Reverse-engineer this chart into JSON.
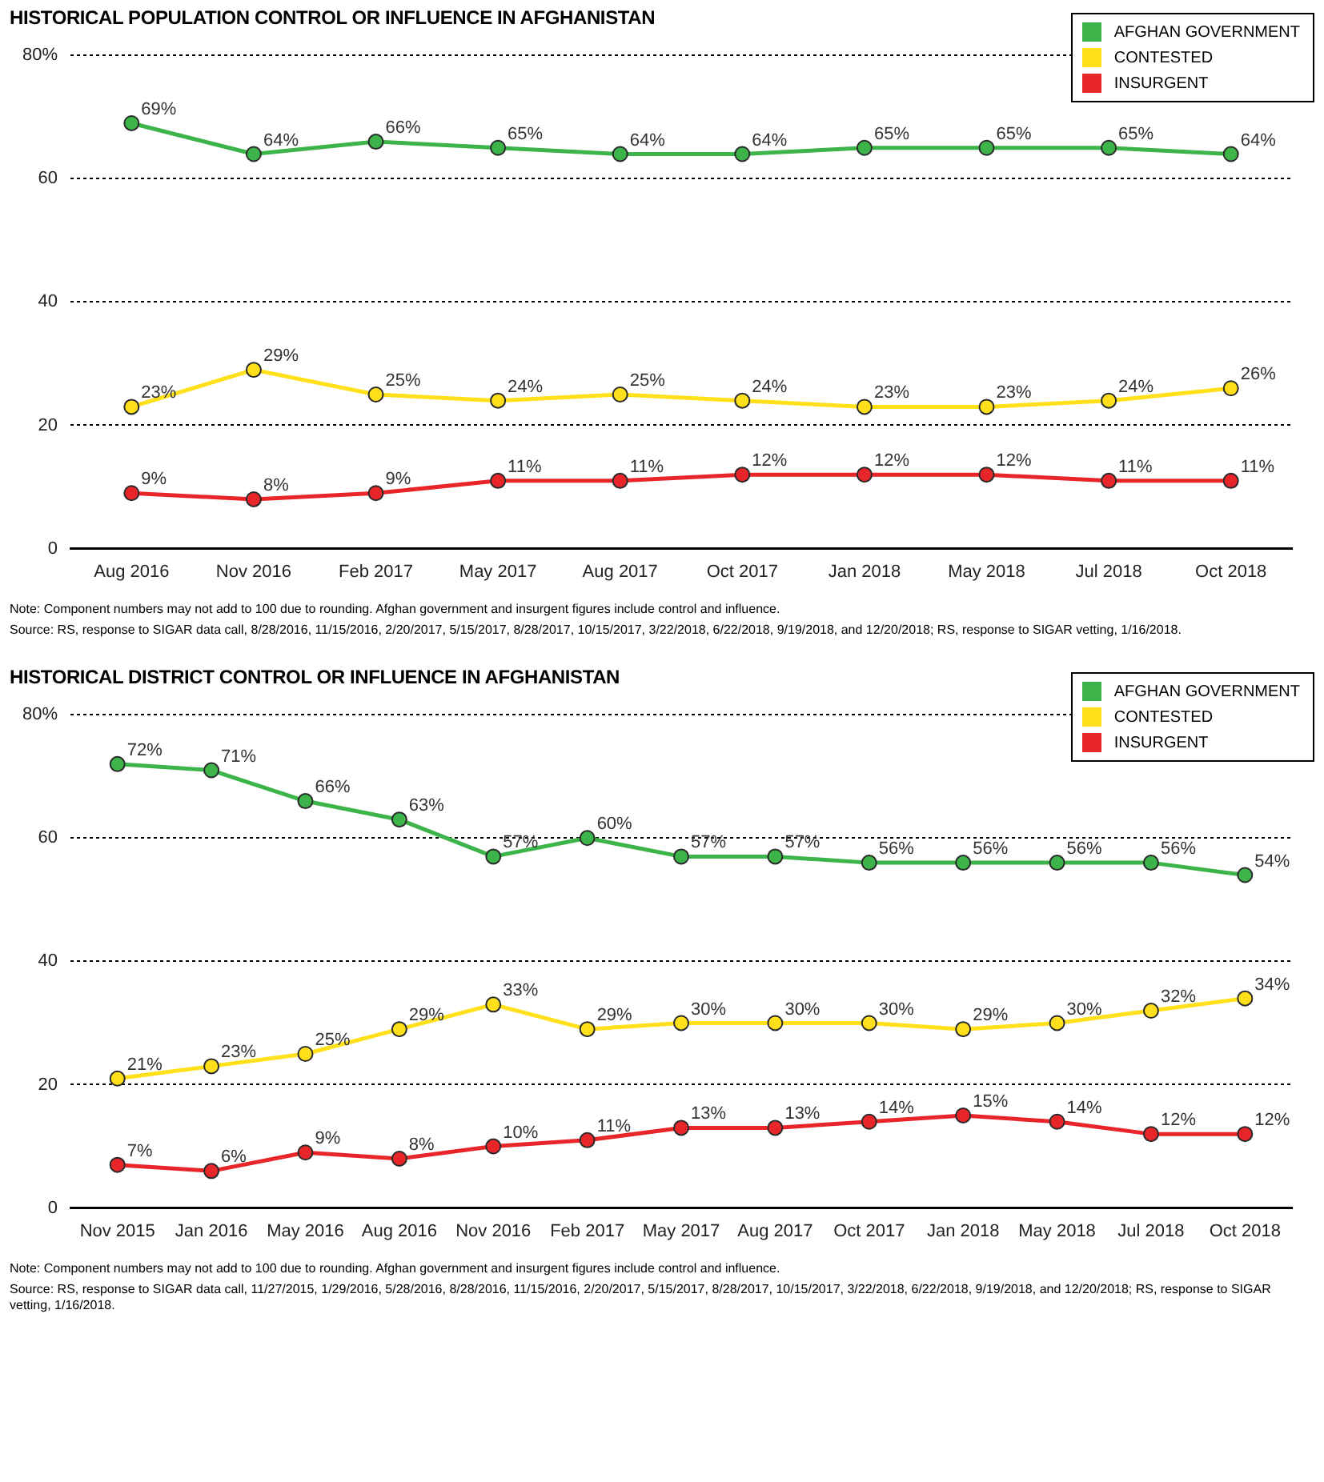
{
  "chart_data": [
    {
      "type": "line",
      "title": "HISTORICAL POPULATION CONTROL OR INFLUENCE IN AFGHANISTAN",
      "categories": [
        "Aug 2016",
        "Nov 2016",
        "Feb 2017",
        "May 2017",
        "Aug 2017",
        "Oct 2017",
        "Jan 2018",
        "May 2018",
        "Jul 2018",
        "Oct 2018"
      ],
      "series": [
        {
          "name": "AFGHAN GOVERNMENT",
          "color": "#3cb44a",
          "values": [
            69,
            64,
            66,
            65,
            64,
            64,
            65,
            65,
            65,
            64
          ],
          "value_labels": [
            "69%",
            "64%",
            "66%",
            "65%",
            "64%",
            "64%",
            "65%",
            "65%",
            "65%",
            "64%"
          ]
        },
        {
          "name": "CONTESTED",
          "color": "#ffe01a",
          "values": [
            23,
            29,
            25,
            24,
            25,
            24,
            23,
            23,
            24,
            26
          ],
          "value_labels": [
            "23%",
            "29%",
            "25%",
            "24%",
            "25%",
            "24%",
            "23%",
            "23%",
            "24%",
            "26%"
          ]
        },
        {
          "name": "INSURGENT",
          "color": "#e8262a",
          "values": [
            9,
            8,
            9,
            11,
            11,
            12,
            12,
            12,
            11,
            11
          ],
          "value_labels": [
            "9%",
            "8%",
            "9%",
            "11%",
            "11%",
            "12%",
            "12%",
            "12%",
            "11%",
            "11%"
          ]
        }
      ],
      "ylim": [
        0,
        80
      ],
      "yticks": [
        0,
        20,
        40,
        60,
        {
          "value": 80,
          "label": "80%"
        }
      ],
      "grid": "y",
      "legend": "top right",
      "marker": "circle",
      "annotations": [
        "Note: Component numbers may not add to 100 due to rounding. Afghan government and insurgent figures include control and influence.",
        "Source: RS, response to SIGAR data call, 8/28/2016, 11/15/2016, 2/20/2017, 5/15/2017, 8/28/2017, 10/15/2017, 3/22/2018, 6/22/2018, 9/19/2018, and 12/20/2018; RS, response to SIGAR vetting, 1/16/2018."
      ]
    },
    {
      "type": "line",
      "title": "HISTORICAL DISTRICT CONTROL OR INFLUENCE IN AFGHANISTAN",
      "categories": [
        "Nov 2015",
        "Jan 2016",
        "May 2016",
        "Aug 2016",
        "Nov 2016",
        "Feb 2017",
        "May 2017",
        "Aug 2017",
        "Oct 2017",
        "Jan 2018",
        "May 2018",
        "Jul 2018",
        "Oct 2018"
      ],
      "series": [
        {
          "name": "AFGHAN GOVERNMENT",
          "color": "#3cb44a",
          "values": [
            72,
            71,
            66,
            63,
            57,
            60,
            57,
            57,
            56,
            56,
            56,
            56,
            54
          ],
          "value_labels": [
            "72%",
            "71%",
            "66%",
            "63%",
            "57%",
            "60%",
            "57%",
            "57%",
            "56%",
            "56%",
            "56%",
            "56%",
            "54%"
          ]
        },
        {
          "name": "CONTESTED",
          "color": "#ffe01a",
          "values": [
            21,
            23,
            25,
            29,
            33,
            29,
            30,
            30,
            30,
            29,
            30,
            32,
            34
          ],
          "value_labels": [
            "21%",
            "23%",
            "25%",
            "29%",
            "33%",
            "29%",
            "30%",
            "30%",
            "30%",
            "29%",
            "30%",
            "32%",
            "34%"
          ]
        },
        {
          "name": "INSURGENT",
          "color": "#e8262a",
          "values": [
            7,
            6,
            9,
            8,
            10,
            11,
            13,
            13,
            14,
            15,
            14,
            12,
            12
          ],
          "value_labels": [
            "7%",
            "6%",
            "9%",
            "8%",
            "10%",
            "11%",
            "13%",
            "13%",
            "14%",
            "15%",
            "14%",
            "12%",
            "12%"
          ]
        }
      ],
      "ylim": [
        0,
        80
      ],
      "yticks": [
        0,
        20,
        40,
        60,
        {
          "value": 80,
          "label": "80%"
        }
      ],
      "grid": "y",
      "legend": "top right",
      "marker": "circle",
      "annotations": [
        "Note: Component numbers may not add to 100 due to rounding. Afghan government and insurgent figures include control and influence.",
        "Source: RS, response to SIGAR data call, 11/27/2015, 1/29/2016, 5/28/2016, 8/28/2016, 11/15/2016, 2/20/2017, 5/15/2017, 8/28/2017, 10/15/2017, 3/22/2018, 6/22/2018, 9/19/2018, and 12/20/2018; RS, response to SIGAR vetting, 1/16/2018."
      ]
    }
  ]
}
